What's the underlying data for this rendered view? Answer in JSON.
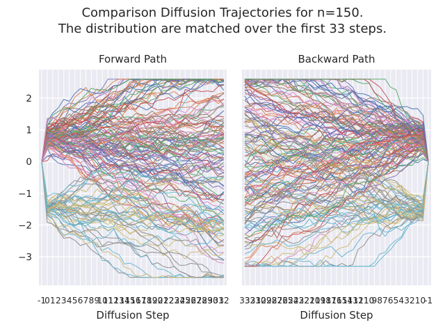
{
  "figure": {
    "title_line1": "Comparison Diffusion Trajectories for n=150.",
    "title_line2": "The distribution are matched over the first 33 steps."
  },
  "chart_data": [
    {
      "type": "line",
      "title": "Forward Path",
      "xlabel": "Diffusion Step",
      "ylabel": "",
      "x": [
        "-1",
        "0",
        "1",
        "2",
        "3",
        "4",
        "5",
        "6",
        "7",
        "8",
        "9",
        "10",
        "11",
        "12",
        "13",
        "14",
        "15",
        "16",
        "17",
        "18",
        "19",
        "20",
        "21",
        "22",
        "23",
        "24",
        "25",
        "26",
        "27",
        "28",
        "29",
        "30",
        "31",
        "32"
      ],
      "yticks": [
        "−3",
        "−2",
        "−1",
        "0",
        "1",
        "2"
      ],
      "ytick_values": [
        -3,
        -2,
        -1,
        0,
        1,
        2
      ],
      "ylim": [
        -3.9,
        2.9
      ],
      "grid": true,
      "n_series": 150,
      "start_value": 0.0,
      "cluster_after_first_step": [
        {
          "center": 0.75,
          "spread": 0.25,
          "fraction": 0.7
        },
        {
          "center": -1.5,
          "spread": 0.15,
          "fraction": 0.3
        }
      ],
      "extremes": {
        "max": 2.6,
        "min": -3.65
      }
    },
    {
      "type": "line",
      "title": "Backward Path",
      "xlabel": "Diffusion Step",
      "ylabel": "",
      "x": [
        "33",
        "32",
        "31",
        "30",
        "29",
        "28",
        "27",
        "26",
        "25",
        "24",
        "23",
        "22",
        "21",
        "20",
        "19",
        "18",
        "17",
        "16",
        "15",
        "14",
        "13",
        "12",
        "11",
        "10",
        "9",
        "8",
        "7",
        "6",
        "5",
        "4",
        "3",
        "2",
        "1",
        "0",
        "-1"
      ],
      "ylim": [
        -3.9,
        2.9
      ],
      "grid": true,
      "n_series": 150,
      "end_value": 0.0,
      "cluster_before_last_step": [
        {
          "center": 0.75,
          "spread": 0.25,
          "fraction": 0.7
        },
        {
          "center": -1.5,
          "spread": 0.15,
          "fraction": 0.3
        }
      ],
      "extremes": {
        "max": 2.6,
        "min": -3.3
      }
    }
  ],
  "palette": [
    "#4c72b0",
    "#dd8452",
    "#55a868",
    "#c44e52",
    "#8172b3",
    "#937860",
    "#da8bc3",
    "#8c8c8c",
    "#ccb974",
    "#64b5cd"
  ],
  "style": {
    "axes_bg": "#eaeaf2",
    "grid_color": "#ffffff"
  }
}
